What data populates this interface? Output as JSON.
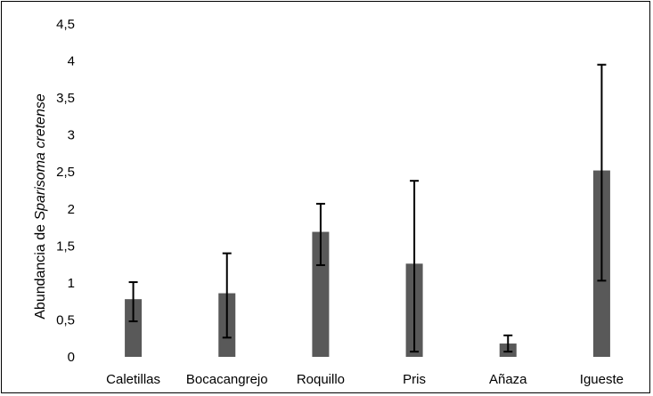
{
  "chart_data": {
    "type": "bar",
    "categories": [
      "Caletillas",
      "Bocacangrejo",
      "Roquillo",
      "Pris",
      "Añaza",
      "Igueste"
    ],
    "values": [
      0.78,
      0.86,
      1.69,
      1.26,
      0.18,
      2.52
    ],
    "error_low": [
      0.48,
      0.26,
      1.24,
      0.07,
      0.07,
      1.03
    ],
    "error_high": [
      1.01,
      1.4,
      2.07,
      2.38,
      0.29,
      3.95
    ],
    "title": "",
    "xlabel": "",
    "ylabel_prefix": "Abundancia de ",
    "ylabel_species": "Sparisoma cretense",
    "ylim": [
      0,
      4.5
    ],
    "yticks": [
      "0",
      "0,5",
      "1",
      "1,5",
      "2",
      "2,5",
      "3",
      "3,5",
      "4",
      "4,5"
    ],
    "bar_color": "#595959",
    "error_color": "#000000",
    "grid": false,
    "legend": "none"
  }
}
